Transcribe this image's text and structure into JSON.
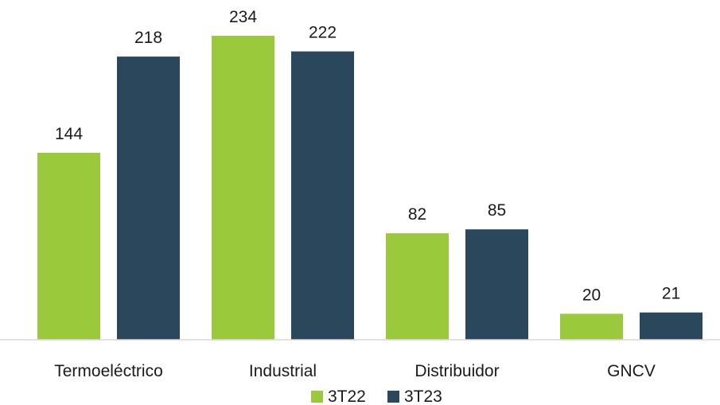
{
  "chart_data": {
    "type": "bar",
    "categories": [
      "Termoeléctrico",
      "Industrial",
      "Distribuidor",
      "GNCV"
    ],
    "series": [
      {
        "name": "3T22",
        "values": [
          144,
          234,
          82,
          20
        ],
        "color": "#9ACA3C"
      },
      {
        "name": "3T23",
        "values": [
          218,
          222,
          85,
          21
        ],
        "color": "#2A475C"
      }
    ],
    "title": "",
    "xlabel": "",
    "ylabel": "",
    "ylim": [
      0,
      234
    ],
    "grid": false,
    "legend": "bottom-center",
    "data_labels": true
  }
}
